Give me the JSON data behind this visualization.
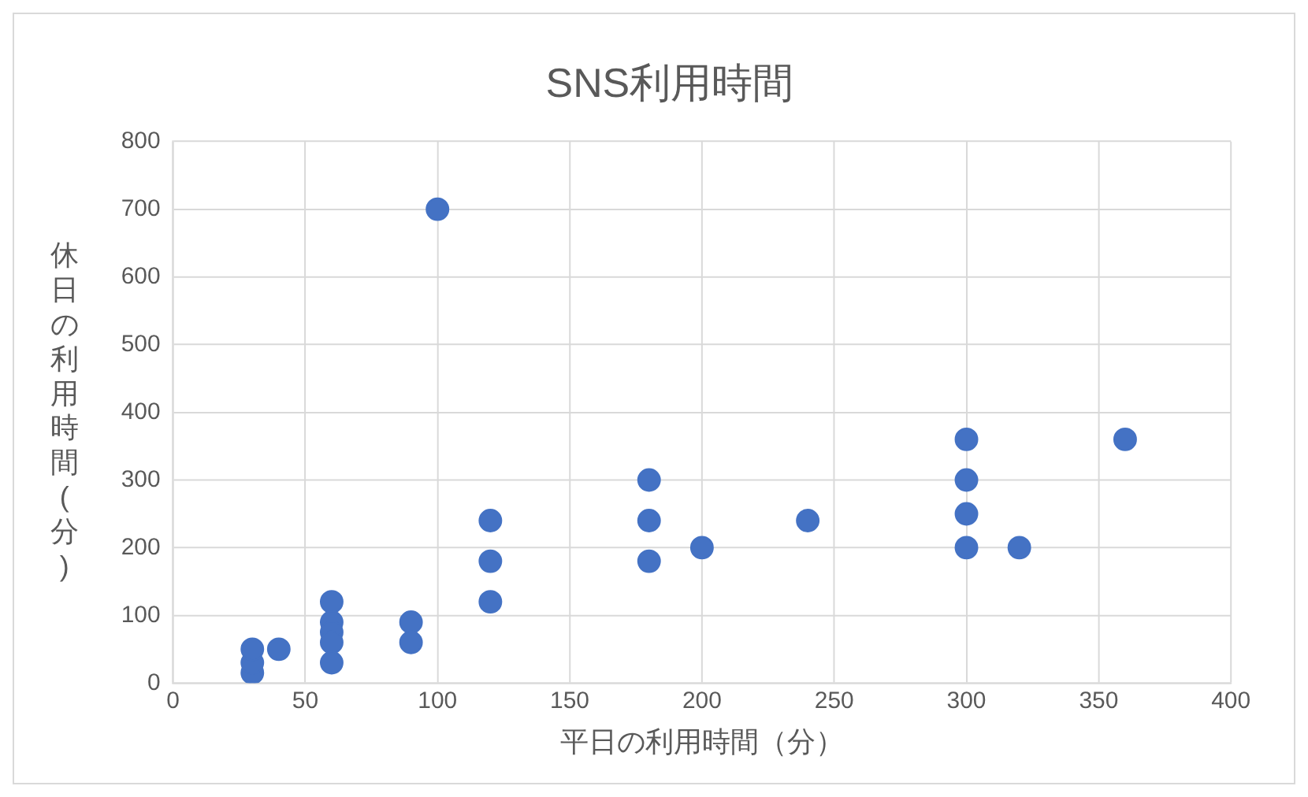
{
  "chart_data": {
    "type": "scatter",
    "title": "SNS利用時間",
    "xlabel": "平日の利用時間（分）",
    "ylabel": "休日の利用時間(分)",
    "x": [
      30,
      30,
      30,
      40,
      60,
      60,
      60,
      60,
      60,
      90,
      90,
      100,
      120,
      120,
      120,
      180,
      180,
      180,
      200,
      240,
      300,
      300,
      300,
      300,
      320,
      360
    ],
    "values": [
      15,
      30,
      50,
      50,
      120,
      90,
      75,
      60,
      30,
      90,
      60,
      700,
      240,
      180,
      120,
      300,
      240,
      180,
      200,
      240,
      360,
      300,
      250,
      200,
      200,
      360
    ],
    "color": "#4472c4",
    "marker": "circle",
    "xlim": [
      0,
      400
    ],
    "xticks": [
      0,
      50,
      100,
      150,
      200,
      250,
      300,
      350,
      400
    ],
    "ylim": [
      0,
      800
    ],
    "yticks": [
      0,
      100,
      200,
      300,
      400,
      500,
      600,
      700,
      800
    ],
    "grid": true,
    "legend": false
  }
}
